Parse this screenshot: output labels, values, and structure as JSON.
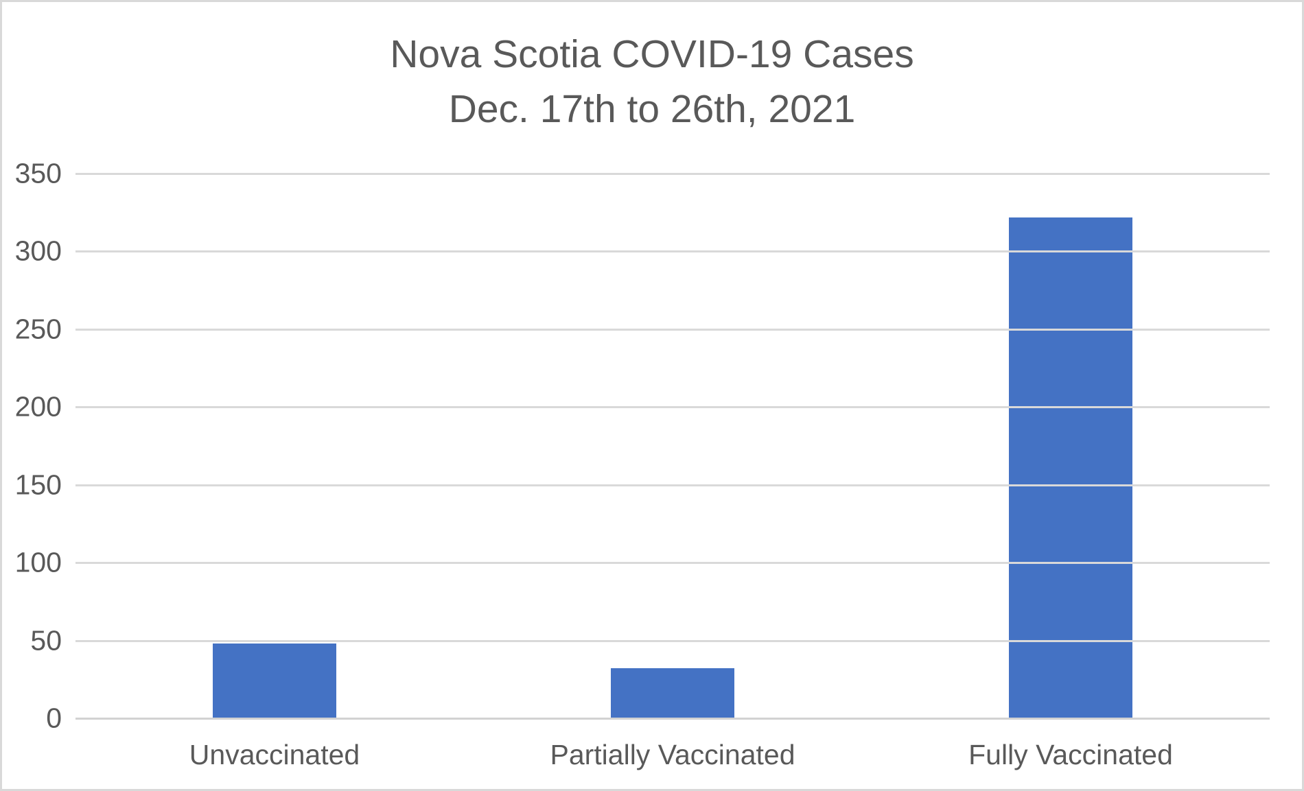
{
  "chart_data": {
    "type": "bar",
    "title_line1": "Nova Scotia COVID-19 Cases",
    "title_line2": "Dec. 17th to 26th, 2021",
    "categories": [
      "Unvaccinated",
      "Partially Vaccinated",
      "Fully Vaccinated"
    ],
    "values": [
      48,
      32,
      322
    ],
    "yticks": [
      350,
      300,
      250,
      200,
      150,
      100,
      50,
      0
    ],
    "ylim": [
      0,
      350
    ],
    "grid": true,
    "legend": "none",
    "xlabel": "",
    "ylabel": "",
    "colors": {
      "bar": "#4472C4",
      "gridline": "#D9D9D9",
      "axis_line": "#D2D2D2",
      "text": "#595959",
      "background": "#FFFFFF",
      "border": "#D9D9D9"
    }
  }
}
